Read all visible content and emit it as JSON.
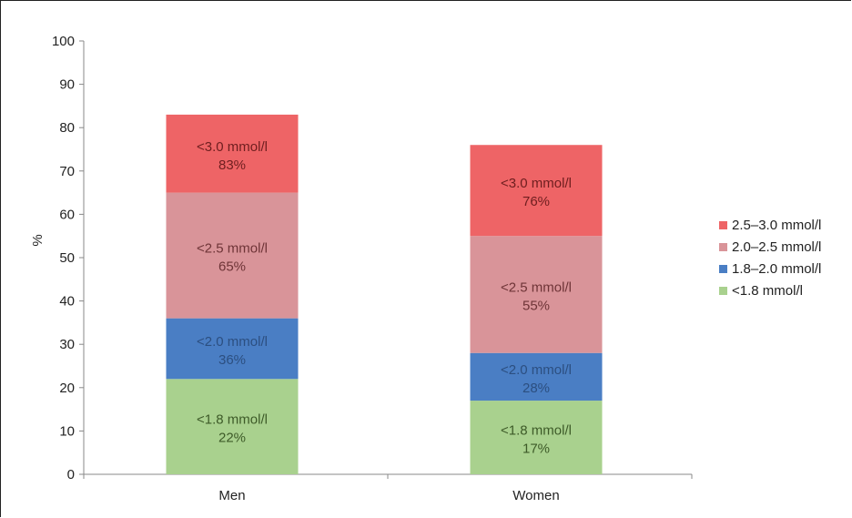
{
  "chart_data": {
    "type": "bar",
    "stacked": true,
    "categories": [
      "Men",
      "Women"
    ],
    "ylabel": "%",
    "ylim": [
      0,
      100
    ],
    "yticks": [
      0,
      10,
      20,
      30,
      40,
      50,
      60,
      70,
      80,
      90,
      100
    ],
    "grid": false,
    "legend_position": "right",
    "series": [
      {
        "name": "<1.8 mmol/l",
        "color": "#a9d18e",
        "label_color": "#3d5a28",
        "values": [
          22,
          17
        ],
        "cumulative": [
          22,
          17
        ],
        "segment_labels": [
          "<1.8 mmol/l",
          "<1.8 mmol/l"
        ],
        "value_labels": [
          "22%",
          "17%"
        ]
      },
      {
        "name": "1.8–2.0 mmol/l",
        "color": "#4a7ec4",
        "label_color": "#2c4f80",
        "values": [
          14,
          11
        ],
        "cumulative": [
          36,
          28
        ],
        "segment_labels": [
          "<2.0 mmol/l",
          "<2.0 mmol/l"
        ],
        "value_labels": [
          "36%",
          "28%"
        ]
      },
      {
        "name": "2.0–2.5 mmol/l",
        "color": "#d99499",
        "label_color": "#6e3437",
        "values": [
          29,
          27
        ],
        "cumulative": [
          65,
          55
        ],
        "segment_labels": [
          "<2.5 mmol/l",
          "<2.5 mmol/l"
        ],
        "value_labels": [
          "65%",
          "55%"
        ]
      },
      {
        "name": "2.5–3.0 mmol/l",
        "color": "#ee6466",
        "label_color": "#6e1e1f",
        "values": [
          18,
          21
        ],
        "cumulative": [
          83,
          76
        ],
        "segment_labels": [
          "<3.0 mmol/l",
          "<3.0 mmol/l"
        ],
        "value_labels": [
          "83%",
          "76%"
        ]
      }
    ],
    "legend_order": [
      "2.5–3.0 mmol/l",
      "2.0–2.5 mmol/l",
      "1.8–2.0 mmol/l",
      "<1.8 mmol/l"
    ]
  }
}
